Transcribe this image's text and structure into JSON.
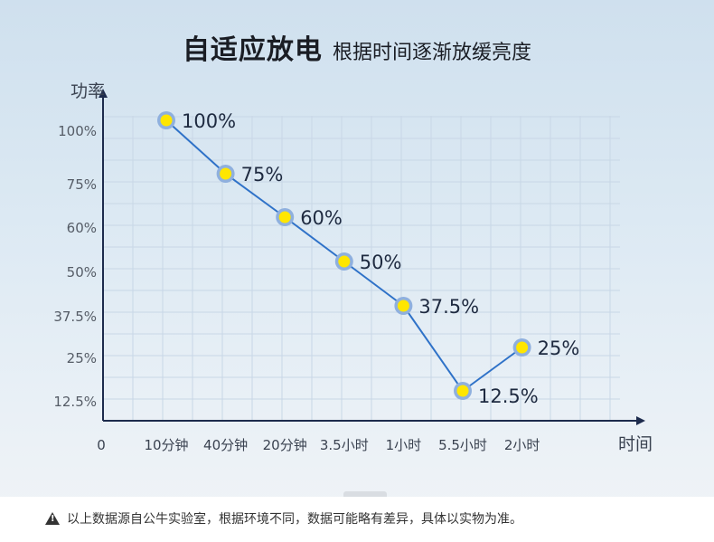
{
  "header": {
    "title": "自适应放电",
    "subtitle": "根据时间逐渐放缓亮度"
  },
  "footer": {
    "note": "以上数据源自公牛实验室，根据环境不同，数据可能略有差异，具体以实物为准。",
    "icon": "warning-icon"
  },
  "colors": {
    "line": "#2f72c8",
    "marker_fill": "#ffe600",
    "marker_ring": "#8fb0de",
    "axis": "#1d2b4d"
  },
  "chart_data": {
    "type": "line",
    "title": "自适应放电",
    "subtitle": "根据时间逐渐放缓亮度",
    "xlabel": "时间",
    "ylabel": "功率",
    "origin_label": "0",
    "categories": [
      "10分钟",
      "40分钟",
      "20分钟",
      "3.5小时",
      "1小时",
      "5.5小时",
      "2小时"
    ],
    "yticks": [
      {
        "value": 100,
        "label": "100%"
      },
      {
        "value": 75,
        "label": "75%"
      },
      {
        "value": 60,
        "label": "60%"
      },
      {
        "value": 50,
        "label": "50%"
      },
      {
        "value": 37.5,
        "label": "37.5%"
      },
      {
        "value": 25,
        "label": "25%"
      },
      {
        "value": 12.5,
        "label": "12.5%"
      }
    ],
    "series": [
      {
        "values": [
          100,
          75,
          60,
          50,
          37.5,
          12.5,
          25
        ],
        "labels": [
          "100%",
          "75%",
          "60%",
          "50%",
          "37.5%",
          "12.5%",
          "25%"
        ]
      }
    ],
    "grid": true,
    "legend": "none"
  }
}
